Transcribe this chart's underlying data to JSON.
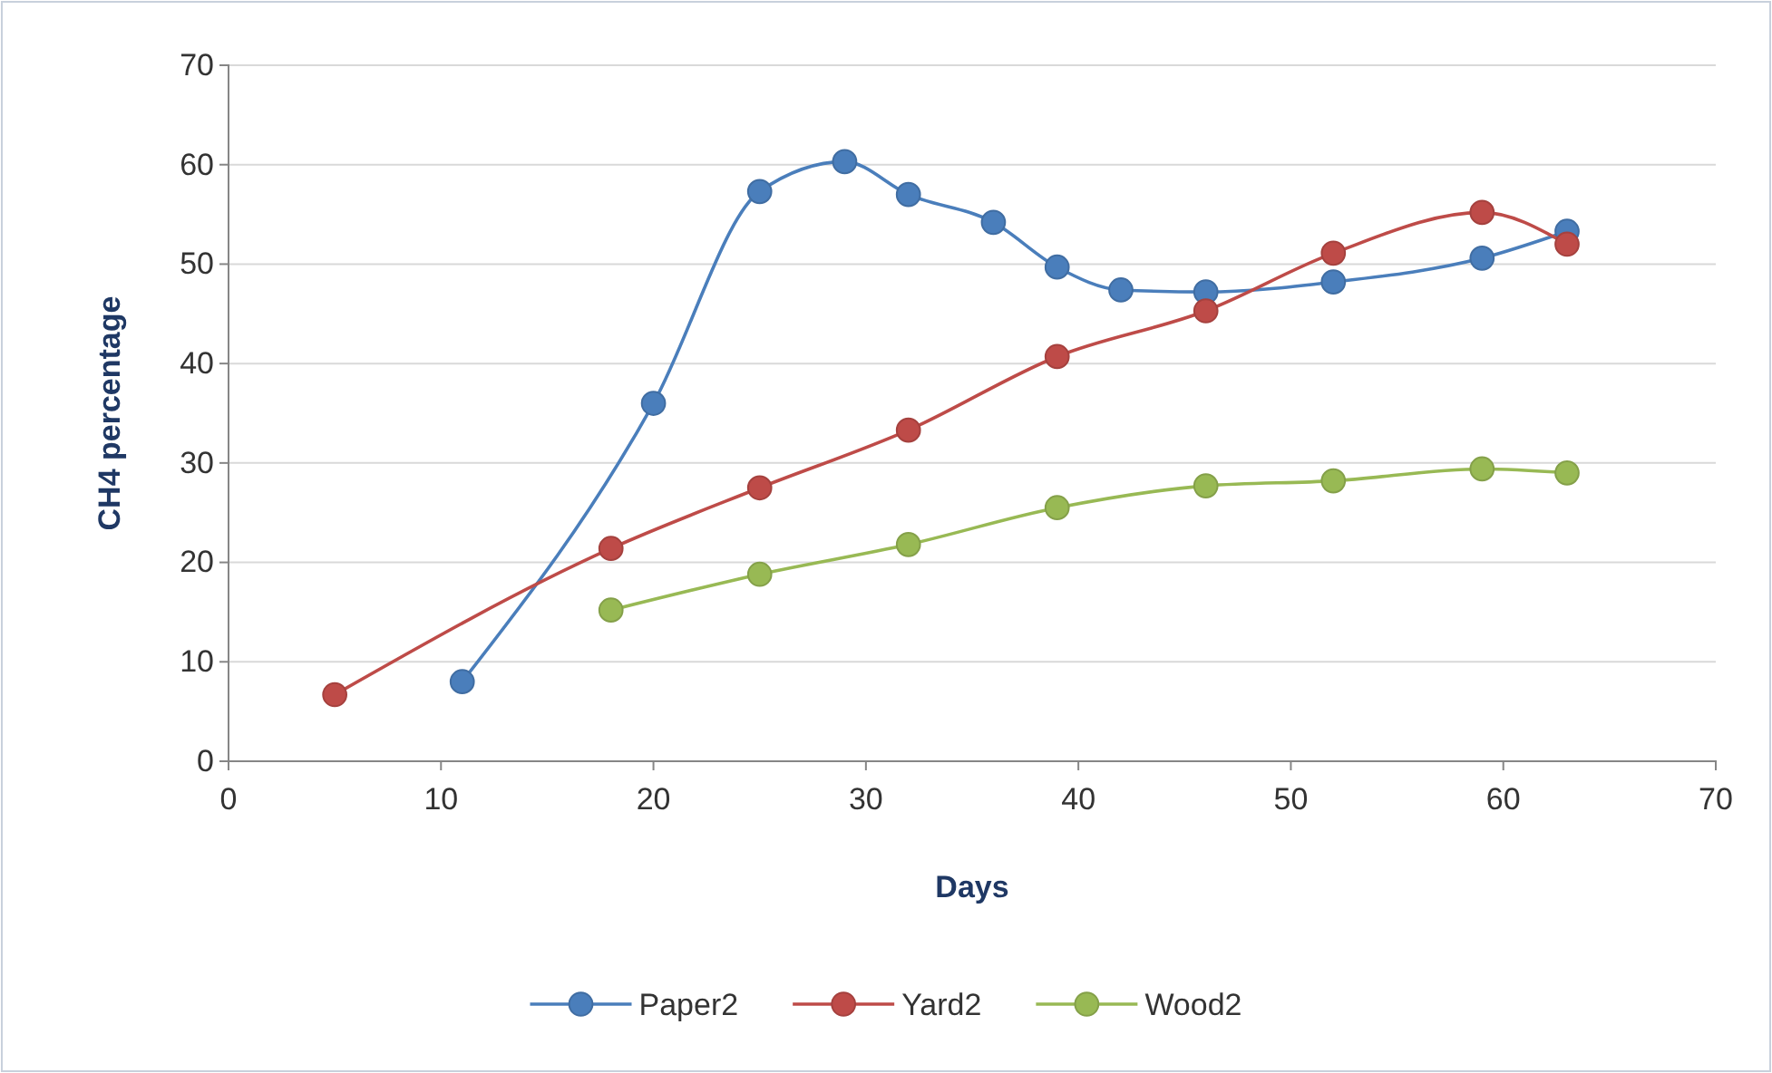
{
  "chart_data": {
    "type": "line",
    "xlabel": "Days",
    "ylabel": "CH4 percentage",
    "xlim": [
      0,
      70
    ],
    "xticks": [
      0,
      10,
      20,
      30,
      40,
      50,
      60,
      70
    ],
    "ylim": [
      0,
      70
    ],
    "yticks": [
      0,
      10,
      20,
      30,
      40,
      50,
      60,
      70
    ],
    "grid": "y",
    "legend": "bottom",
    "marker": "circle",
    "line_style": "solid",
    "series": [
      {
        "name": "Paper2",
        "color": "#4a7ebb",
        "x": [
          11,
          20,
          25,
          29,
          32,
          36,
          39,
          42,
          46,
          52,
          59,
          63
        ],
        "values": [
          8,
          36,
          57.3,
          60.3,
          57,
          54.2,
          49.7,
          47.4,
          47.2,
          48.2,
          50.6,
          53.3
        ]
      },
      {
        "name": "Yard2",
        "color": "#be4b48",
        "x": [
          5,
          18,
          25,
          32,
          39,
          46,
          52,
          59,
          63
        ],
        "values": [
          6.7,
          21.4,
          27.5,
          33.3,
          40.7,
          45.3,
          51.1,
          55.2,
          52
        ]
      },
      {
        "name": "Wood2",
        "color": "#98b954",
        "x": [
          18,
          25,
          32,
          39,
          46,
          52,
          59,
          63
        ],
        "values": [
          15.2,
          18.8,
          21.8,
          25.5,
          27.7,
          28.2,
          29.4,
          29
        ]
      }
    ]
  }
}
